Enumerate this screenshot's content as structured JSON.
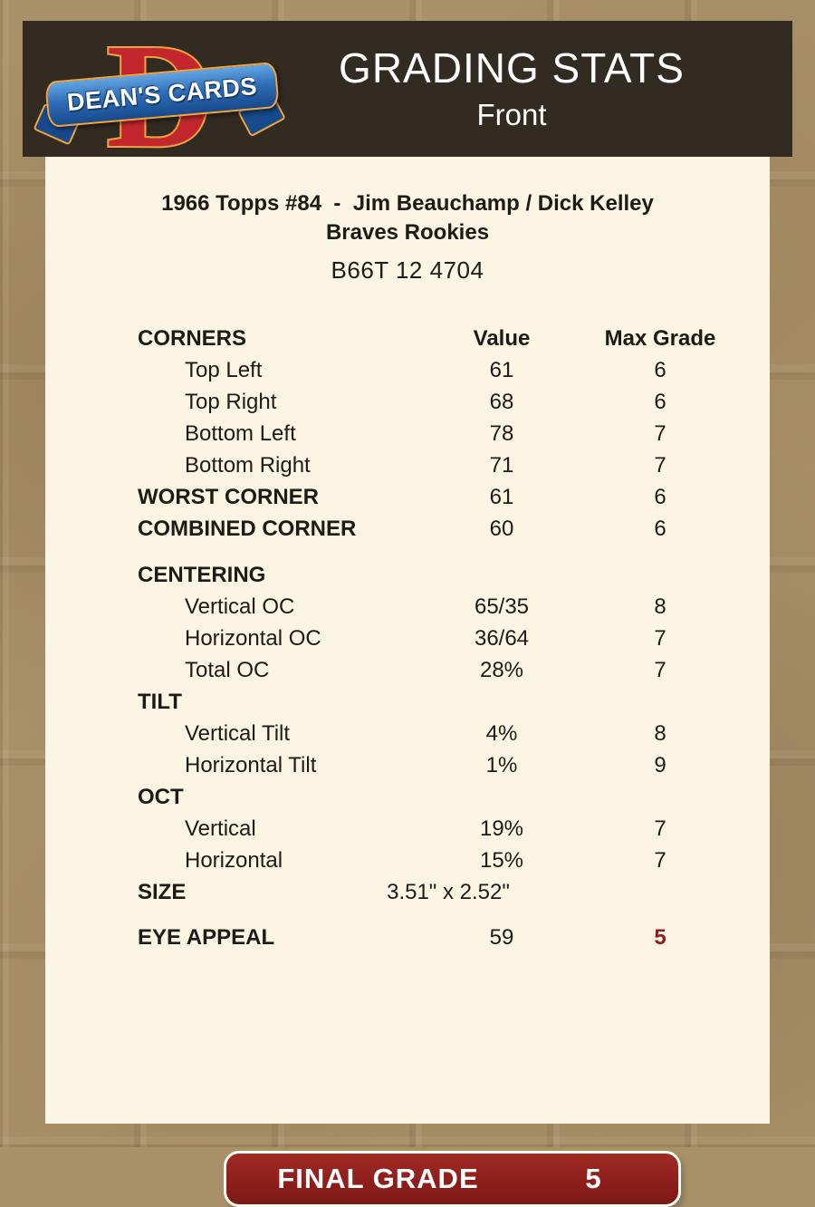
{
  "colors": {
    "tan_bg": "#a89068",
    "header_bg": "#322b21",
    "panel_bg": "#fcf5e4",
    "accent_red": "#8e1f1c",
    "logo_red": "#c1272d",
    "logo_orange": "#f2a33c",
    "logo_blue": "#2e6cb5",
    "text": "#1d1b16"
  },
  "header": {
    "logo_letter": "D",
    "logo_text": "DEAN'S CARDS",
    "title": "GRADING STATS",
    "subtitle": "Front"
  },
  "card": {
    "title_line1": "1966 Topps #84  -  Jim Beauchamp / Dick Kelley",
    "title_line2": "Braves Rookies",
    "serial": "B66T 12 4704"
  },
  "table": {
    "rows": [
      {
        "label": "CORNERS",
        "value": "Value",
        "grade": "Max Grade"
      },
      {
        "label": "Top Left",
        "value": "61",
        "grade": "6"
      },
      {
        "label": "Top Right",
        "value": "68",
        "grade": "6"
      },
      {
        "label": "Bottom Left",
        "value": "78",
        "grade": "7"
      },
      {
        "label": "Bottom Right",
        "value": "71",
        "grade": "7"
      },
      {
        "label": "WORST CORNER",
        "value": "61",
        "grade": "6"
      },
      {
        "label": "COMBINED CORNER",
        "value": "60",
        "grade": "6"
      },
      {
        "label": "CENTERING",
        "value": "",
        "grade": ""
      },
      {
        "label": "Vertical OC",
        "value": "65/35",
        "grade": "8"
      },
      {
        "label": "Horizontal OC",
        "value": "36/64",
        "grade": "7"
      },
      {
        "label": "Total OC",
        "value": "28%",
        "grade": "7"
      },
      {
        "label": "TILT",
        "value": "",
        "grade": ""
      },
      {
        "label": "Vertical Tilt",
        "value": "4%",
        "grade": "8"
      },
      {
        "label": "Horizontal Tilt",
        "value": "1%",
        "grade": "9"
      },
      {
        "label": "OCT",
        "value": "",
        "grade": ""
      },
      {
        "label": "Vertical",
        "value": "19%",
        "grade": "7"
      },
      {
        "label": "Horizontal",
        "value": "15%",
        "grade": "7"
      },
      {
        "label": "SIZE",
        "value": "3.51\" x 2.52\"",
        "grade": ""
      },
      {
        "label": "EYE APPEAL",
        "value": "59",
        "grade": "5"
      }
    ]
  },
  "final_grade": {
    "label": "FINAL GRADE",
    "value": "5"
  }
}
